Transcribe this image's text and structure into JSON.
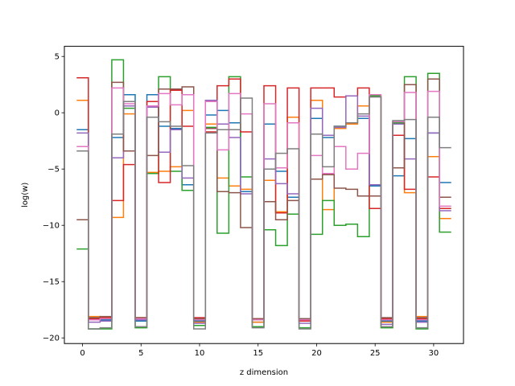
{
  "chart_data": {
    "type": "line",
    "style": "step",
    "title": "",
    "xlabel": "z dimension",
    "ylabel": "log(w)",
    "xlim": [
      -1.55,
      32.55
    ],
    "ylim": [
      -20.5,
      5.9
    ],
    "xticks": [
      0,
      5,
      10,
      15,
      20,
      25,
      30
    ],
    "yticks": [
      -20,
      -15,
      -10,
      -5,
      0,
      5
    ],
    "grid": false,
    "legend": "none",
    "x": [
      0,
      1,
      2,
      3,
      4,
      5,
      6,
      7,
      8,
      9,
      10,
      11,
      12,
      13,
      14,
      15,
      16,
      17,
      18,
      19,
      20,
      21,
      22,
      23,
      24,
      25,
      26,
      27,
      28,
      29,
      30,
      31
    ],
    "series": [
      {
        "color": "#1f77b4",
        "values": [
          -1.5,
          -18.3,
          -18.4,
          -2.2,
          1.6,
          -18.5,
          1.6,
          -1.2,
          -1.4,
          -6.4,
          -18.5,
          -0.2,
          0.2,
          -0.9,
          -7.0,
          -18.6,
          -1.0,
          -5.2,
          -7.5,
          -18.3,
          -0.5,
          -2.2,
          -1.2,
          -0.9,
          -0.5,
          -6.5,
          -18.5,
          -5.6,
          -2.3,
          -18.5,
          -1.8,
          -6.2
        ]
      },
      {
        "color": "#ff7f0e",
        "values": [
          1.1,
          -18.1,
          -18.2,
          -9.3,
          -0.1,
          -18.2,
          -5.3,
          -5.2,
          -4.8,
          0.2,
          -18.6,
          -1.0,
          -5.8,
          -6.5,
          -6.8,
          -18.6,
          -6.0,
          -8.8,
          -0.4,
          -18.5,
          1.1,
          -8.6,
          -1.4,
          -1.0,
          0.6,
          1.5,
          -18.6,
          -1.0,
          -7.1,
          -18.1,
          -3.9,
          -9.4
        ]
      },
      {
        "color": "#2ca02c",
        "values": [
          -12.1,
          -19.2,
          -19.2,
          4.7,
          0.4,
          -19.1,
          -5.4,
          3.2,
          -5.2,
          -6.9,
          -18.9,
          -1.3,
          -10.7,
          3.2,
          -5.7,
          -19.0,
          -10.4,
          -11.8,
          -9.0,
          -19.1,
          -10.8,
          -7.8,
          -10.0,
          -9.9,
          -11.0,
          1.5,
          -19.1,
          -0.9,
          3.2,
          -19.2,
          3.5,
          -10.6
        ]
      },
      {
        "color": "#d62728",
        "values": [
          3.1,
          -18.3,
          -18.2,
          -7.8,
          -4.6,
          -18.3,
          1.0,
          -6.2,
          2.0,
          -1.2,
          -18.2,
          -1.7,
          2.4,
          3.0,
          -1.7,
          -18.3,
          2.4,
          -8.9,
          2.2,
          -18.5,
          2.2,
          2.2,
          1.4,
          1.5,
          2.2,
          -8.5,
          -18.3,
          -2.0,
          -6.8,
          -18.3,
          -5.7,
          -8.5
        ]
      },
      {
        "color": "#9467bd",
        "values": [
          -1.8,
          -18.6,
          -18.5,
          -4.0,
          0.6,
          -18.4,
          0.5,
          -3.5,
          -1.5,
          -5.8,
          -18.7,
          1.1,
          -1.0,
          -2.2,
          -7.2,
          -18.4,
          -4.1,
          -6.3,
          -7.2,
          -18.7,
          0.4,
          -2.0,
          -1.3,
          1.5,
          -0.3,
          -6.4,
          -18.8,
          -1.0,
          -4.1,
          -18.6,
          -1.8,
          -8.7
        ]
      },
      {
        "color": "#8c564b",
        "values": [
          -9.5,
          -18.2,
          -18.1,
          2.7,
          -3.4,
          -18.2,
          -3.8,
          2.1,
          2.1,
          2.3,
          -18.3,
          -1.4,
          -7.0,
          -7.1,
          -10.2,
          -18.3,
          -7.9,
          -9.5,
          -7.8,
          -18.3,
          -5.9,
          -5.5,
          -6.7,
          -6.8,
          -7.4,
          -7.4,
          -18.2,
          -4.9,
          2.5,
          -18.2,
          3.0,
          -7.5
        ]
      },
      {
        "color": "#e377c2",
        "values": [
          -3.0,
          -18.4,
          -18.3,
          2.2,
          0.8,
          -18.3,
          0.6,
          1.7,
          0.7,
          1.6,
          -18.4,
          1.0,
          -3.3,
          1.7,
          -0.1,
          -18.4,
          0.8,
          -4.9,
          -0.9,
          -18.4,
          -3.8,
          -5.4,
          -3.0,
          -5.0,
          -3.6,
          1.6,
          -18.4,
          -0.8,
          1.8,
          -18.4,
          1.9,
          -8.3
        ]
      },
      {
        "color": "#7f7f7f",
        "values": [
          -3.4,
          -19.2,
          -19.1,
          -1.9,
          1.0,
          -19.0,
          -0.4,
          -0.8,
          -1.2,
          -4.7,
          -19.2,
          -1.8,
          -1.5,
          -1.5,
          1.3,
          -19.1,
          -5.0,
          -3.6,
          -3.2,
          -19.2,
          -1.9,
          -4.8,
          -1.2,
          -0.9,
          -0.1,
          1.4,
          -19.0,
          -0.7,
          -0.6,
          -19.1,
          -0.4,
          -3.1
        ]
      }
    ]
  }
}
